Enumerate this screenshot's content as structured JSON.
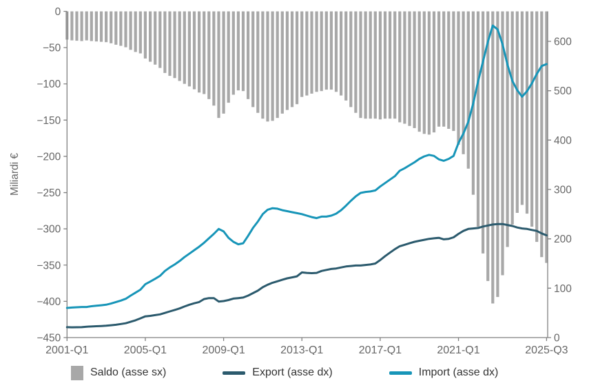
{
  "legend": {
    "saldo": "Saldo (asse sx)",
    "export": "Export (asse dx)",
    "import": "Import (asse dx)"
  },
  "colors": {
    "saldo": "#A8A8A8",
    "export": "#2B5A6D",
    "import": "#1795B8",
    "axis": "#808080",
    "tick_text": "#666666",
    "legend_text": "#333333"
  },
  "chart_data": {
    "type": "bar+line combo, quarterly time series",
    "title": "",
    "ylabel_left": "Miliardi €",
    "x_range": "2001-Q1 to 2025-Q3, quarterly, 99 points",
    "x_tick_labels": [
      "2001-Q1",
      "2005-Q1",
      "2009-Q1",
      "2013-Q1",
      "2017-Q1",
      "2021-Q1",
      "2025-Q3"
    ],
    "x_tick_indices": [
      0,
      16,
      32,
      48,
      64,
      80,
      98
    ],
    "y_left_ticks": [
      0,
      -50,
      -100,
      -150,
      -200,
      -250,
      -300,
      -350,
      -400,
      -450
    ],
    "y_left_range": [
      -450,
      0
    ],
    "y_right_ticks": [
      0,
      100,
      200,
      300,
      400,
      500,
      600
    ],
    "y_right_range": [
      0,
      660
    ],
    "grid": false,
    "legend_position": "bottom",
    "series": [
      {
        "name": "Saldo (asse sx)",
        "axis": "left",
        "type": "bar",
        "values": [
          -39,
          -40,
          -40.5,
          -41,
          -40,
          -41,
          -41.5,
          -42,
          -42.5,
          -44,
          -46,
          -47.5,
          -49.5,
          -53,
          -56,
          -58,
          -65,
          -69.5,
          -73.5,
          -78,
          -85,
          -89,
          -92,
          -96,
          -100,
          -103.5,
          -107.5,
          -112,
          -114,
          -121,
          -130,
          -147,
          -141,
          -126,
          -115,
          -109,
          -110,
          -121,
          -132,
          -140,
          -148,
          -152,
          -151,
          -147,
          -141,
          -136,
          -132,
          -128,
          -118,
          -116,
          -113.5,
          -111,
          -110,
          -108,
          -108,
          -111,
          -116,
          -123,
          -132,
          -140,
          -147,
          -148,
          -148,
          -148,
          -149,
          -148,
          -148,
          -148,
          -153,
          -155,
          -158,
          -161,
          -166,
          -169,
          -170,
          -167,
          -159,
          -159,
          -162,
          -165,
          -184,
          -197,
          -217,
          -253,
          -297,
          -334,
          -372,
          -403,
          -394,
          -364,
          -325,
          -294,
          -278,
          -267,
          -279,
          -297,
          -318,
          -339,
          -347
        ]
      },
      {
        "name": "Export (asse dx)",
        "axis": "right",
        "type": "line",
        "values": [
          21,
          20.8,
          20.9,
          21,
          22,
          22.5,
          23,
          23.5,
          24,
          25,
          26,
          27.5,
          29,
          32,
          35,
          39,
          43,
          44,
          45.5,
          47,
          50,
          53,
          56,
          59,
          63,
          66.5,
          69.5,
          72,
          78,
          80,
          80,
          73,
          74,
          76,
          79,
          80,
          81,
          85,
          90,
          95,
          102,
          107,
          111,
          114,
          117,
          120,
          122,
          124,
          132,
          131,
          130.5,
          131,
          135,
          137,
          139,
          140,
          142,
          144,
          145,
          146,
          146,
          147,
          148,
          150,
          157,
          165,
          172,
          179,
          185,
          188,
          191,
          194,
          196,
          198,
          200,
          201,
          202,
          199,
          200,
          203,
          210,
          216,
          220,
          221,
          222,
          225,
          227,
          229,
          230,
          230,
          228,
          226,
          223,
          221,
          220,
          218,
          216,
          211,
          207
        ]
      },
      {
        "name": "Import (asse dx)",
        "axis": "right",
        "type": "line",
        "values": [
          60,
          60.8,
          61.4,
          62,
          62,
          63.5,
          64.5,
          65.5,
          66.5,
          69,
          72,
          75,
          78.5,
          85,
          91,
          97,
          108,
          113.5,
          119,
          125,
          135,
          142,
          148,
          155,
          163,
          170,
          177,
          184,
          192,
          201,
          210,
          220,
          215,
          202,
          194,
          189,
          191,
          206,
          222,
          235,
          250,
          259,
          262,
          261,
          258,
          256,
          254,
          252,
          250,
          247,
          244,
          242,
          245,
          245,
          247,
          251,
          258,
          267,
          277,
          286,
          293,
          295,
          296,
          298,
          306,
          313,
          320,
          327,
          338,
          343,
          349,
          355,
          362,
          367,
          370,
          368,
          361,
          358,
          362,
          368,
          394,
          413,
          437,
          474,
          519,
          559,
          599,
          632,
          624,
          594,
          553,
          520,
          501,
          488,
          499,
          515,
          534,
          550,
          554
        ]
      }
    ]
  }
}
